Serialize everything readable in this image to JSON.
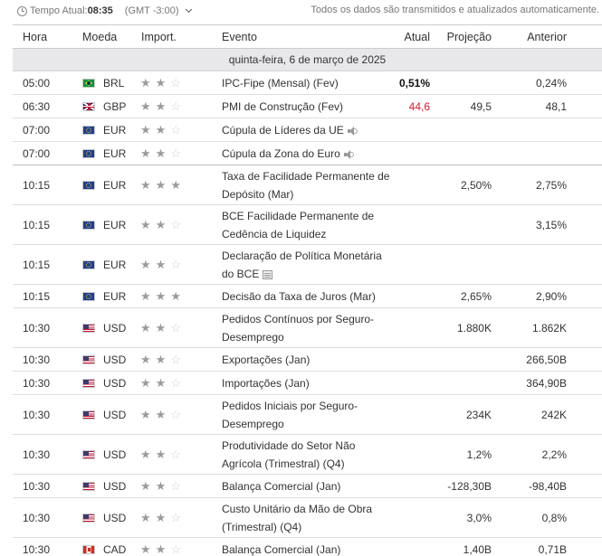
{
  "topbar": {
    "time_prefix": "Tempo Atual:",
    "time_value": "08:35",
    "timezone": "(GMT -3:00)",
    "auto_note": "Todos os dados são transmitidos e atualizados automaticamente."
  },
  "columns": {
    "time": "Hora",
    "currency": "Moeda",
    "importance": "Import.",
    "event": "Evento",
    "actual": "Atual",
    "forecast": "Projeção",
    "previous": "Anterior"
  },
  "date_label": "quinta-feira, 6 de março de 2025",
  "rows": [
    {
      "time": "05:00",
      "flag": "brazil-flag",
      "currency": "BRL",
      "importance": 2,
      "event": "IPC-Fipe (Mensal) (Fev)",
      "event_icon": "",
      "actual": "0,51%",
      "actual_style": "bold",
      "forecast": "",
      "previous": "0,24%"
    },
    {
      "time": "06:30",
      "flag": "uk-flag",
      "currency": "GBP",
      "importance": 2,
      "event": "PMI de Construção (Fev)",
      "event_icon": "",
      "actual": "44,6",
      "actual_style": "negative",
      "forecast": "49,5",
      "previous": "48,1"
    },
    {
      "time": "07:00",
      "flag": "eu-flag",
      "currency": "EUR",
      "importance": 2,
      "event": "Cúpula de Líderes da UE",
      "event_icon": "speaker-icon",
      "actual": "",
      "actual_style": "",
      "forecast": "",
      "previous": ""
    },
    {
      "time": "07:00",
      "flag": "eu-flag",
      "currency": "EUR",
      "importance": 2,
      "event": "Cúpula da Zona do Euro",
      "event_icon": "speaker-icon",
      "actual": "",
      "actual_style": "",
      "forecast": "",
      "previous": ""
    },
    {
      "time": "10:15",
      "flag": "eu-flag",
      "currency": "EUR",
      "importance": 3,
      "event": "Taxa de Facilidade Permanente de Depósito (Mar)",
      "event_icon": "",
      "actual": "",
      "actual_style": "",
      "forecast": "2,50%",
      "previous": "2,75%"
    },
    {
      "time": "10:15",
      "flag": "eu-flag",
      "currency": "EUR",
      "importance": 2,
      "event": "BCE Facilidade Permanente de Cedência de Liquidez",
      "event_icon": "",
      "actual": "",
      "actual_style": "",
      "forecast": "",
      "previous": "3,15%"
    },
    {
      "time": "10:15",
      "flag": "eu-flag",
      "currency": "EUR",
      "importance": 2,
      "event": "Declaração de Política Monetária do BCE",
      "event_icon": "document-icon",
      "actual": "",
      "actual_style": "",
      "forecast": "",
      "previous": ""
    },
    {
      "time": "10:15",
      "flag": "eu-flag",
      "currency": "EUR",
      "importance": 3,
      "event": "Decisão da Taxa de Juros (Mar)",
      "event_icon": "",
      "actual": "",
      "actual_style": "",
      "forecast": "2,65%",
      "previous": "2,90%"
    },
    {
      "time": "10:30",
      "flag": "us-flag",
      "currency": "USD",
      "importance": 2,
      "event": "Pedidos Contínuos por Seguro-Desemprego",
      "event_icon": "",
      "actual": "",
      "actual_style": "",
      "forecast": "1.880K",
      "previous": "1.862K"
    },
    {
      "time": "10:30",
      "flag": "us-flag",
      "currency": "USD",
      "importance": 2,
      "event": "Exportações (Jan)",
      "event_icon": "",
      "actual": "",
      "actual_style": "",
      "forecast": "",
      "previous": "266,50B"
    },
    {
      "time": "10:30",
      "flag": "us-flag",
      "currency": "USD",
      "importance": 2,
      "event": "Importações (Jan)",
      "event_icon": "",
      "actual": "",
      "actual_style": "",
      "forecast": "",
      "previous": "364,90B"
    },
    {
      "time": "10:30",
      "flag": "us-flag",
      "currency": "USD",
      "importance": 2,
      "event": "Pedidos Iniciais por Seguro-Desemprego",
      "event_icon": "",
      "actual": "",
      "actual_style": "",
      "forecast": "234K",
      "previous": "242K"
    },
    {
      "time": "10:30",
      "flag": "us-flag",
      "currency": "USD",
      "importance": 2,
      "event": "Produtividade do Setor Não Agrícola (Trimestral) (Q4)",
      "event_icon": "",
      "actual": "",
      "actual_style": "",
      "forecast": "1,2%",
      "previous": "2,2%"
    },
    {
      "time": "10:30",
      "flag": "us-flag",
      "currency": "USD",
      "importance": 2,
      "event": "Balança Comercial (Jan)",
      "event_icon": "",
      "actual": "",
      "actual_style": "",
      "forecast": "-128,30B",
      "previous": "-98,40B"
    },
    {
      "time": "10:30",
      "flag": "us-flag",
      "currency": "USD",
      "importance": 2,
      "event": "Custo Unitário da Mão de Obra (Trimestral) (Q4)",
      "event_icon": "",
      "actual": "",
      "actual_style": "",
      "forecast": "3,0%",
      "previous": "0,8%"
    },
    {
      "time": "10:30",
      "flag": "canada-flag",
      "currency": "CAD",
      "importance": 2,
      "event": "Balança Comercial (Jan)",
      "event_icon": "",
      "actual": "",
      "actual_style": "",
      "forecast": "1,40B",
      "previous": "0,71B"
    }
  ],
  "colors": {
    "negative": "#e0162b",
    "date_row_bg": "#e8e8eb",
    "star_on": "#9b9b9b",
    "star_off": "#cfcfcf"
  }
}
